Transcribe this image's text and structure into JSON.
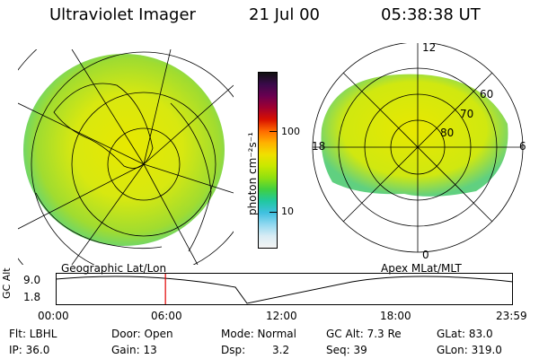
{
  "header": {
    "instrument": "Ultraviolet Imager",
    "date": "21 Jul 00",
    "time": "05:38:38 UT"
  },
  "geo_panel": {
    "label": "Geographic Lat/Lon"
  },
  "apex_panel": {
    "label": "Apex MLat/MLT",
    "mlt_labels": [
      "12",
      "18",
      "6",
      "0"
    ],
    "mlat_labels": [
      "60",
      "70",
      "80"
    ]
  },
  "colorbar": {
    "unit_label": "photon cm⁻²s⁻¹",
    "ticks": [
      "100",
      "10"
    ],
    "colors": [
      "#101010",
      "#3a0a4a",
      "#6a0050",
      "#a00030",
      "#d81000",
      "#ff6a00",
      "#ffb000",
      "#f0e000",
      "#c8e800",
      "#90e010",
      "#40d040",
      "#20c8a0",
      "#40c0e0",
      "#90d8f0",
      "#d8ecf4",
      "#f4f4f4"
    ]
  },
  "altitude_plot": {
    "ylabel": "GC Alt",
    "y_ticks": [
      "9.0",
      "1.8"
    ],
    "x_ticks": [
      "00:00",
      "06:00",
      "12:00",
      "18:00",
      "23:59"
    ],
    "current_time_fraction": 0.24
  },
  "status": {
    "flt": "Flt: LBHL",
    "ip": "IP: 36.0",
    "door": "Door: Open",
    "gain": "Gain: 13",
    "mode": "Mode: Normal",
    "dsp": "Dsp:",
    "dsp_value": "3.2",
    "gc_alt": "GC Alt: 7.3 Re",
    "seq": "Seq: 39",
    "glat": "GLat:  83.0",
    "glon": "GLon: 319.0"
  }
}
